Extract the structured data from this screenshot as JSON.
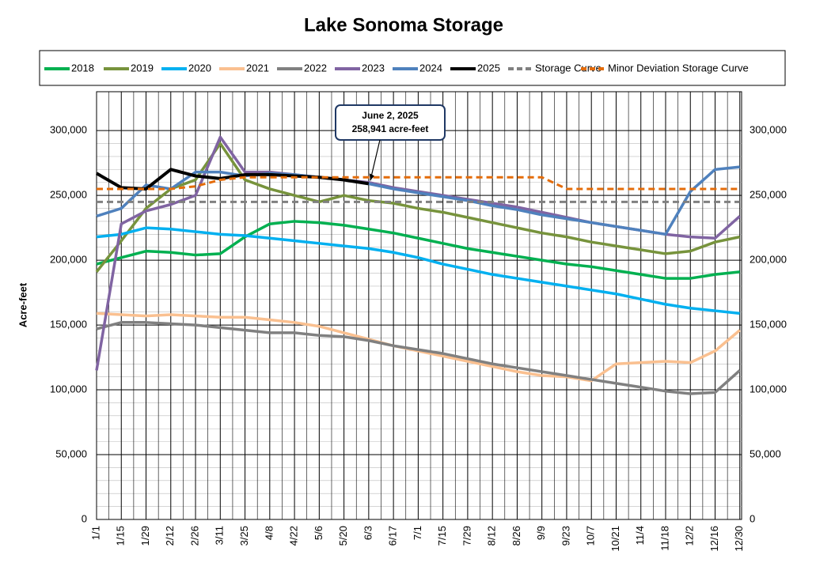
{
  "chart_data": {
    "type": "line",
    "title": "Lake Sonoma Storage",
    "y_label": "Acre-feet",
    "x": [
      0,
      14,
      28,
      42,
      56,
      70,
      84,
      98,
      112,
      126,
      140,
      154,
      168,
      182,
      196,
      210,
      224,
      238,
      252,
      266,
      280,
      294,
      308,
      322,
      336,
      350,
      364
    ],
    "xlim": [
      0,
      365
    ],
    "xticks": [
      {
        "value": 0,
        "label": "1/1"
      },
      {
        "value": 14,
        "label": "1/15"
      },
      {
        "value": 28,
        "label": "1/29"
      },
      {
        "value": 42,
        "label": "2/12"
      },
      {
        "value": 56,
        "label": "2/26"
      },
      {
        "value": 70,
        "label": "3/11"
      },
      {
        "value": 84,
        "label": "3/25"
      },
      {
        "value": 98,
        "label": "4/8"
      },
      {
        "value": 112,
        "label": "4/22"
      },
      {
        "value": 126,
        "label": "5/6"
      },
      {
        "value": 140,
        "label": "5/20"
      },
      {
        "value": 154,
        "label": "6/3"
      },
      {
        "value": 168,
        "label": "6/17"
      },
      {
        "value": 182,
        "label": "7/1"
      },
      {
        "value": 196,
        "label": "7/15"
      },
      {
        "value": 210,
        "label": "7/29"
      },
      {
        "value": 224,
        "label": "8/12"
      },
      {
        "value": 238,
        "label": "8/26"
      },
      {
        "value": 252,
        "label": "9/9"
      },
      {
        "value": 266,
        "label": "9/23"
      },
      {
        "value": 280,
        "label": "10/7"
      },
      {
        "value": 294,
        "label": "10/21"
      },
      {
        "value": 308,
        "label": "11/4"
      },
      {
        "value": 322,
        "label": "11/18"
      },
      {
        "value": 336,
        "label": "12/2"
      },
      {
        "value": 350,
        "label": "12/16"
      },
      {
        "value": 364,
        "label": "12/30"
      }
    ],
    "ylim": [
      0,
      330000
    ],
    "yticks": [
      0,
      {
        "value": 50000,
        "label": "50,000"
      },
      {
        "value": 100000,
        "label": "100,000"
      },
      {
        "value": 150000,
        "label": "150,000"
      },
      {
        "value": 200000,
        "label": "200,000"
      },
      {
        "value": 250000,
        "label": "250,000"
      },
      {
        "value": 300000,
        "label": "300,000"
      }
    ],
    "grid": true,
    "legend": "top",
    "series": [
      {
        "name": "2018",
        "color": "#00b050",
        "style": "solid",
        "values": [
          197000,
          202000,
          207000,
          206000,
          204000,
          205000,
          218000,
          228000,
          230000,
          229000,
          227000,
          224000,
          221000,
          217000,
          213000,
          209000,
          206000,
          203000,
          200000,
          197000,
          195000,
          192000,
          189000,
          186000,
          186000,
          189000,
          191000
        ]
      },
      {
        "name": "2019",
        "color": "#77933c",
        "style": "solid",
        "values": [
          191000,
          215000,
          240000,
          255000,
          262000,
          290000,
          262000,
          255000,
          250000,
          245000,
          250000,
          246000,
          244000,
          240000,
          237000,
          233000,
          229000,
          225000,
          221000,
          218000,
          214000,
          211000,
          208000,
          205000,
          207000,
          214000,
          218000
        ]
      },
      {
        "name": "2020",
        "color": "#00b0f0",
        "style": "solid",
        "values": [
          218000,
          220000,
          225000,
          224000,
          222000,
          220000,
          219000,
          217000,
          215000,
          213000,
          211000,
          209000,
          206000,
          202000,
          197000,
          193000,
          189000,
          186000,
          183000,
          180000,
          177000,
          174000,
          170000,
          166000,
          163000,
          161000,
          159000
        ]
      },
      {
        "name": "2021",
        "color": "#fac090",
        "style": "solid",
        "values": [
          159000,
          158000,
          157000,
          158000,
          157000,
          156000,
          156000,
          154000,
          152000,
          149000,
          144000,
          139000,
          134000,
          130000,
          126000,
          122000,
          118000,
          114000,
          111000,
          110000,
          107000,
          120000,
          121000,
          122000,
          121000,
          130000,
          146000
        ]
      },
      {
        "name": "2022",
        "color": "#808080",
        "style": "solid",
        "values": [
          147000,
          152000,
          152000,
          151000,
          150000,
          148000,
          146000,
          144000,
          144000,
          142000,
          141000,
          138000,
          134000,
          131000,
          128000,
          124000,
          120000,
          117000,
          114000,
          111000,
          108000,
          105000,
          102000,
          99000,
          97000,
          98000,
          115000
        ]
      },
      {
        "name": "2023",
        "color": "#8064a2",
        "style": "solid",
        "values": [
          115000,
          228000,
          238000,
          243000,
          250000,
          295000,
          268000,
          268000,
          266000,
          264000,
          262000,
          260000,
          256000,
          253000,
          250000,
          247000,
          244000,
          241000,
          237000,
          233000,
          229000,
          226000,
          223000,
          220000,
          218000,
          217000,
          234000
        ]
      },
      {
        "name": "2024",
        "color": "#4f81bd",
        "style": "solid",
        "values": [
          234000,
          240000,
          258000,
          255000,
          268000,
          268000,
          265000,
          267000,
          266000,
          264000,
          262000,
          259000,
          255000,
          252000,
          249000,
          246000,
          242000,
          239000,
          235000,
          232000,
          229000,
          226000,
          223000,
          220000,
          253000,
          270000,
          272000
        ]
      },
      {
        "name": "2025",
        "color": "#000000",
        "style": "solid",
        "values": [
          267000,
          256000,
          255000,
          270000,
          265000,
          263000,
          266000,
          266000,
          265000,
          264000,
          262000,
          259000,
          null,
          null,
          null,
          null,
          null,
          null,
          null,
          null,
          null,
          null,
          null,
          null,
          null,
          null,
          null
        ]
      },
      {
        "name": "Storage Curve",
        "color": "#808080",
        "style": "dashed",
        "values": [
          245000,
          245000,
          245000,
          245000,
          245000,
          245000,
          245000,
          245000,
          245000,
          245000,
          245000,
          245000,
          245000,
          245000,
          245000,
          245000,
          245000,
          245000,
          245000,
          245000,
          245000,
          245000,
          245000,
          245000,
          245000,
          245000,
          245000
        ]
      },
      {
        "name": "Minor Deviation Storage Curve",
        "color": "#e46c0a",
        "style": "dashed",
        "values": [
          255000,
          255000,
          255000,
          255000,
          257000,
          262000,
          264000,
          264000,
          264000,
          264000,
          264000,
          264000,
          264000,
          264000,
          264000,
          264000,
          264000,
          264000,
          264000,
          255000,
          255000,
          255000,
          255000,
          255000,
          255000,
          255000,
          255000
        ]
      }
    ],
    "annotation": {
      "lines": [
        "June 2, 2025",
        "258,941 acre-feet"
      ]
    }
  }
}
